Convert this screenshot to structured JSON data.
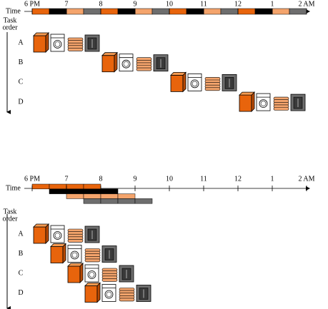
{
  "diagrams": [
    {
      "time_label": "Time",
      "task_order_label": [
        "Task",
        "order"
      ],
      "hours": [
        "6 PM",
        "7",
        "8",
        "9",
        "10",
        "11",
        "12",
        "1",
        "2 AM"
      ],
      "tasks": [
        "A",
        "B",
        "C",
        "D"
      ]
    },
    {
      "time_label": "Time",
      "task_order_label": [
        "Task",
        "order"
      ],
      "hours": [
        "6 PM",
        "7",
        "8",
        "9",
        "10",
        "11",
        "12",
        "1",
        "2 AM"
      ],
      "tasks": [
        "A",
        "B",
        "C",
        "D"
      ]
    }
  ]
}
